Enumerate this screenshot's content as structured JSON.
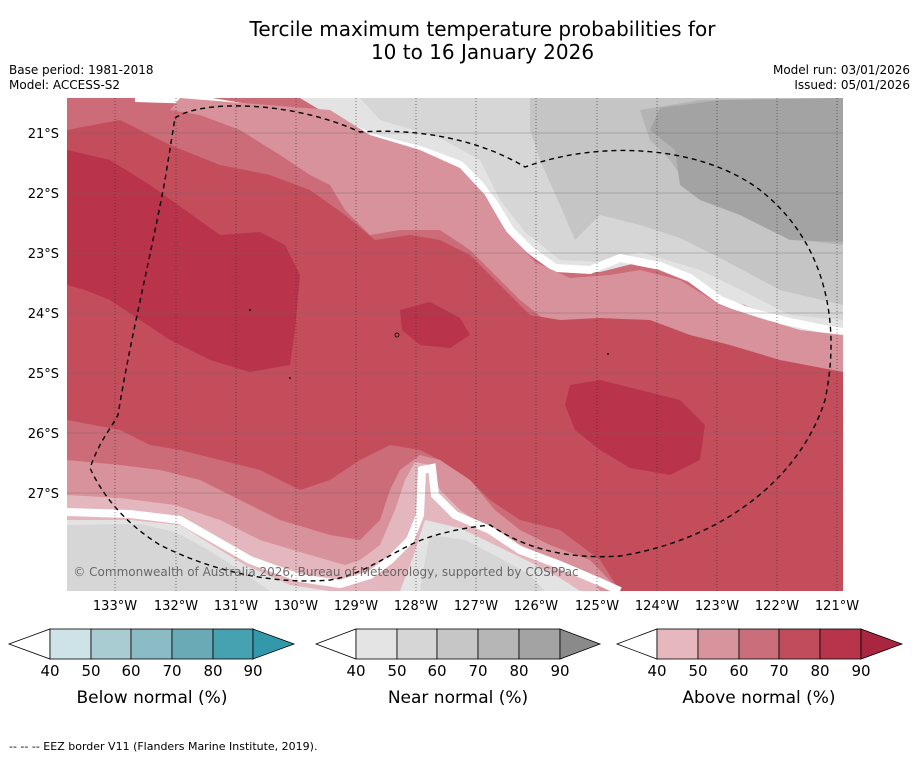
{
  "title": {
    "line1": "Tercile maximum temperature probabilities for",
    "line2": "10 to 16 January 2026"
  },
  "meta": {
    "base_period": "Base period: 1981-2018",
    "model": "Model: ACCESS-S2",
    "model_run": "Model run: 03/01/2026",
    "issued": "Issued: 05/01/2026"
  },
  "map": {
    "lat_labels": [
      "21°S",
      "22°S",
      "23°S",
      "24°S",
      "25°S",
      "26°S",
      "27°S"
    ],
    "lon_labels": [
      "133°W",
      "132°W",
      "131°W",
      "130°W",
      "129°W",
      "128°W",
      "127°W",
      "126°W",
      "125°W",
      "124°W",
      "123°W",
      "122°W",
      "121°W"
    ],
    "copyright": "© Commonwealth of Australia 2026, Bureau of Meteorology, supported by COSPPac"
  },
  "legends": [
    {
      "title": "Below normal (%)",
      "ticks": [
        "40",
        "50",
        "60",
        "70",
        "80",
        "90"
      ],
      "colors": [
        "#cde3e8",
        "#a9ccd2",
        "#8bbbc5",
        "#6aaab7",
        "#46a1b1",
        "#3399aa"
      ]
    },
    {
      "title": "Near normal (%)",
      "ticks": [
        "40",
        "50",
        "60",
        "70",
        "80",
        "90"
      ],
      "colors": [
        "#e4e4e4",
        "#d6d6d6",
        "#c6c6c6",
        "#b6b6b6",
        "#a3a3a3",
        "#8a8a8a"
      ]
    },
    {
      "title": "Above normal (%)",
      "ticks": [
        "40",
        "50",
        "60",
        "70",
        "80",
        "90"
      ],
      "colors": [
        "#e6b7bd",
        "#d8949d",
        "#cb6e7c",
        "#c04c5c",
        "#b8344a",
        "#a82640"
      ]
    }
  ],
  "footnote": "-- -- -- EEZ border V11 (Flanders Marine Institute, 2019).",
  "colors": {
    "red40": "#e3b7bd",
    "red50": "#d8929b",
    "red60": "#cd6c79",
    "red70": "#c44d5c",
    "red80": "#b9334a",
    "grey40": "#e3e3e3",
    "grey50": "#d6d6d6",
    "grey60": "#c5c5c5",
    "grey70": "#b4b4b4",
    "grey80": "#a3a3a3"
  }
}
